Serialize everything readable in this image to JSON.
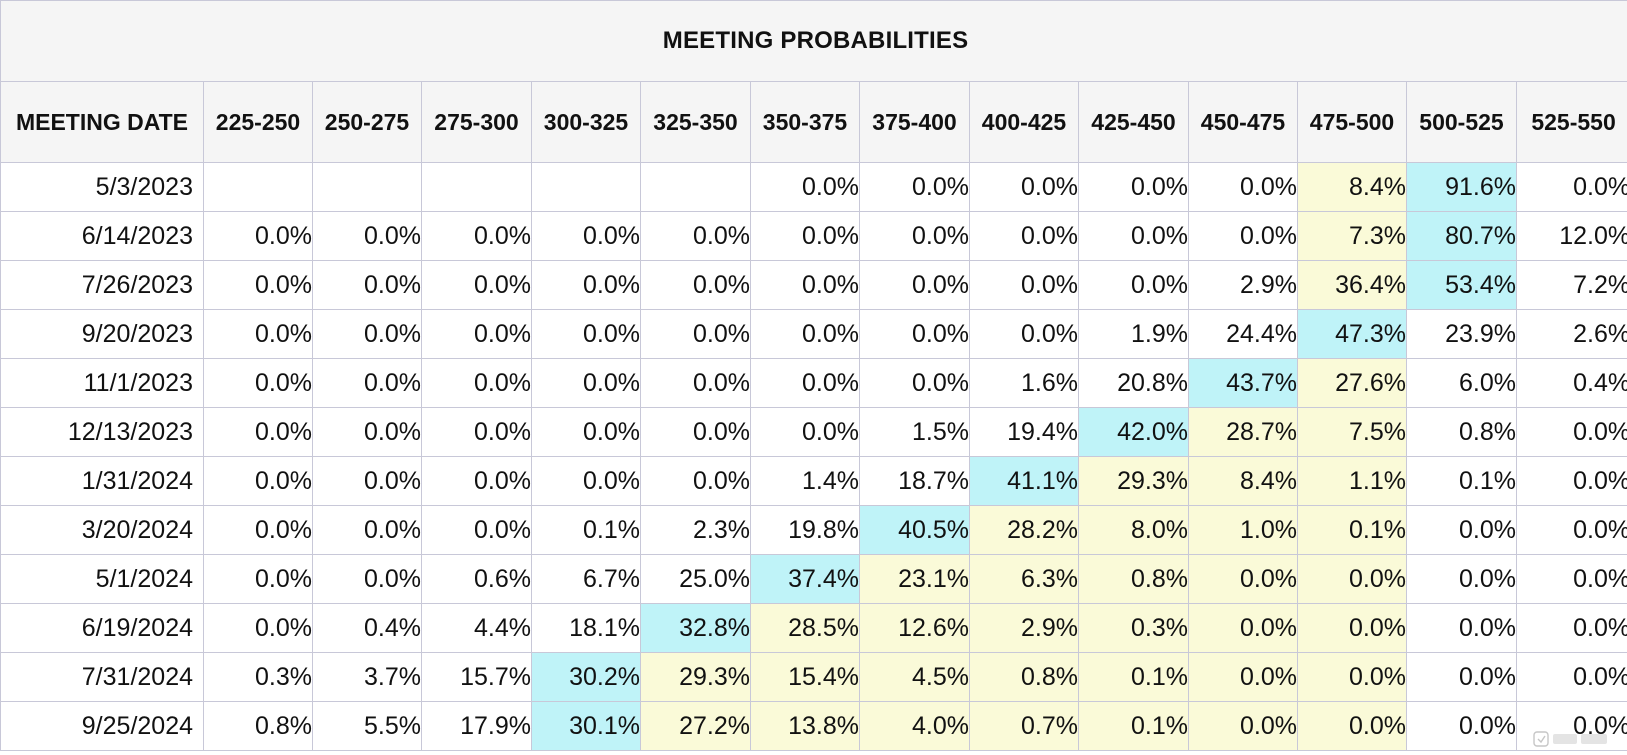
{
  "table": {
    "title": "MEETING PROBABILITIES",
    "date_header": "MEETING DATE",
    "columns": [
      "225-250",
      "250-275",
      "275-300",
      "300-325",
      "325-350",
      "350-375",
      "375-400",
      "400-425",
      "425-450",
      "450-475",
      "475-500",
      "500-525",
      "525-550"
    ],
    "rows": [
      {
        "date": "5/3/2023",
        "cells": [
          "",
          "",
          "",
          "",
          "",
          "0.0%",
          "0.0%",
          "0.0%",
          "0.0%",
          "0.0%",
          "8.4%",
          "91.6%",
          "0.0%"
        ],
        "hl": [
          "",
          "",
          "",
          "",
          "",
          "",
          "",
          "",
          "",
          "",
          "md",
          "hi",
          ""
        ]
      },
      {
        "date": "6/14/2023",
        "cells": [
          "0.0%",
          "0.0%",
          "0.0%",
          "0.0%",
          "0.0%",
          "0.0%",
          "0.0%",
          "0.0%",
          "0.0%",
          "0.0%",
          "7.3%",
          "80.7%",
          "12.0%"
        ],
        "hl": [
          "",
          "",
          "",
          "",
          "",
          "",
          "",
          "",
          "",
          "",
          "md",
          "hi",
          ""
        ]
      },
      {
        "date": "7/26/2023",
        "cells": [
          "0.0%",
          "0.0%",
          "0.0%",
          "0.0%",
          "0.0%",
          "0.0%",
          "0.0%",
          "0.0%",
          "0.0%",
          "2.9%",
          "36.4%",
          "53.4%",
          "7.2%"
        ],
        "hl": [
          "",
          "",
          "",
          "",
          "",
          "",
          "",
          "",
          "",
          "",
          "md",
          "hi",
          ""
        ]
      },
      {
        "date": "9/20/2023",
        "cells": [
          "0.0%",
          "0.0%",
          "0.0%",
          "0.0%",
          "0.0%",
          "0.0%",
          "0.0%",
          "0.0%",
          "1.9%",
          "24.4%",
          "47.3%",
          "23.9%",
          "2.6%"
        ],
        "hl": [
          "",
          "",
          "",
          "",
          "",
          "",
          "",
          "",
          "",
          "",
          "hi",
          "",
          ""
        ]
      },
      {
        "date": "11/1/2023",
        "cells": [
          "0.0%",
          "0.0%",
          "0.0%",
          "0.0%",
          "0.0%",
          "0.0%",
          "0.0%",
          "1.6%",
          "20.8%",
          "43.7%",
          "27.6%",
          "6.0%",
          "0.4%"
        ],
        "hl": [
          "",
          "",
          "",
          "",
          "",
          "",
          "",
          "",
          "",
          "hi",
          "md",
          "",
          ""
        ]
      },
      {
        "date": "12/13/2023",
        "cells": [
          "0.0%",
          "0.0%",
          "0.0%",
          "0.0%",
          "0.0%",
          "0.0%",
          "1.5%",
          "19.4%",
          "42.0%",
          "28.7%",
          "7.5%",
          "0.8%",
          "0.0%"
        ],
        "hl": [
          "",
          "",
          "",
          "",
          "",
          "",
          "",
          "",
          "hi",
          "md",
          "md",
          "",
          ""
        ]
      },
      {
        "date": "1/31/2024",
        "cells": [
          "0.0%",
          "0.0%",
          "0.0%",
          "0.0%",
          "0.0%",
          "1.4%",
          "18.7%",
          "41.1%",
          "29.3%",
          "8.4%",
          "1.1%",
          "0.1%",
          "0.0%"
        ],
        "hl": [
          "",
          "",
          "",
          "",
          "",
          "",
          "",
          "hi",
          "md",
          "md",
          "md",
          "",
          ""
        ]
      },
      {
        "date": "3/20/2024",
        "cells": [
          "0.0%",
          "0.0%",
          "0.0%",
          "0.1%",
          "2.3%",
          "19.8%",
          "40.5%",
          "28.2%",
          "8.0%",
          "1.0%",
          "0.1%",
          "0.0%",
          "0.0%"
        ],
        "hl": [
          "",
          "",
          "",
          "",
          "",
          "",
          "hi",
          "md",
          "md",
          "md",
          "md",
          "",
          ""
        ]
      },
      {
        "date": "5/1/2024",
        "cells": [
          "0.0%",
          "0.0%",
          "0.6%",
          "6.7%",
          "25.0%",
          "37.4%",
          "23.1%",
          "6.3%",
          "0.8%",
          "0.0%",
          "0.0%",
          "0.0%",
          "0.0%"
        ],
        "hl": [
          "",
          "",
          "",
          "",
          "",
          "hi",
          "md",
          "md",
          "md",
          "md",
          "md",
          "",
          ""
        ]
      },
      {
        "date": "6/19/2024",
        "cells": [
          "0.0%",
          "0.4%",
          "4.4%",
          "18.1%",
          "32.8%",
          "28.5%",
          "12.6%",
          "2.9%",
          "0.3%",
          "0.0%",
          "0.0%",
          "0.0%",
          "0.0%"
        ],
        "hl": [
          "",
          "",
          "",
          "",
          "hi",
          "md",
          "md",
          "md",
          "md",
          "md",
          "md",
          "",
          ""
        ]
      },
      {
        "date": "7/31/2024",
        "cells": [
          "0.3%",
          "3.7%",
          "15.7%",
          "30.2%",
          "29.3%",
          "15.4%",
          "4.5%",
          "0.8%",
          "0.1%",
          "0.0%",
          "0.0%",
          "0.0%",
          "0.0%"
        ],
        "hl": [
          "",
          "",
          "",
          "hi",
          "md",
          "md",
          "md",
          "md",
          "md",
          "md",
          "md",
          "",
          ""
        ]
      },
      {
        "date": "9/25/2024",
        "cells": [
          "0.8%",
          "5.5%",
          "17.9%",
          "30.1%",
          "27.2%",
          "13.8%",
          "4.0%",
          "0.7%",
          "0.1%",
          "0.0%",
          "0.0%",
          "0.0%",
          "0.0%"
        ],
        "hl": [
          "",
          "",
          "",
          "hi",
          "md",
          "md",
          "md",
          "md",
          "md",
          "md",
          "md",
          "",
          ""
        ]
      }
    ]
  },
  "colors": {
    "highlight_max": "#bff3f8",
    "highlight_current": "#fafad8",
    "header_bg": "#f5f5f5",
    "border": "#c8c8d8"
  },
  "watermark": {
    "icon": "watermark-logo-icon"
  }
}
